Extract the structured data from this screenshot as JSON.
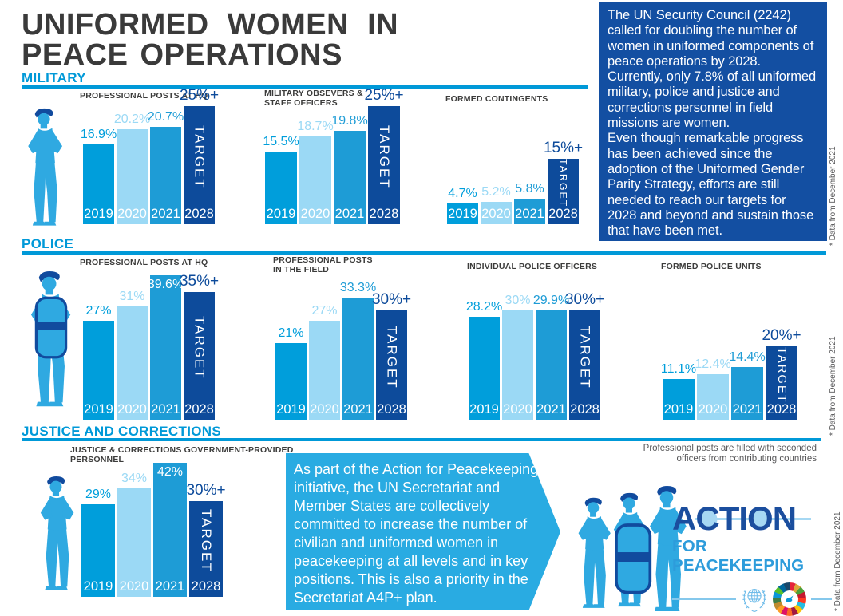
{
  "title": {
    "line1": "UNIFORMED WOMEN IN",
    "line2": "PEACE OPERATIONS"
  },
  "sections": [
    {
      "label": "MILITARY"
    },
    {
      "label": "POLICE"
    },
    {
      "label": "JUSTICE AND CORRECTIONS"
    }
  ],
  "info_box": {
    "text": "The UN Security Council (2242) called for doubling the number of women in uniformed components of peace operations by 2028. Currently, only 7.8% of all uniformed military, police and justice and corrections personnel in field missions are women.\nEven though remarkable progress has been achieved since the adoption of the Uniformed Gender Parity Strategy, efforts are still needed to reach our targets for 2028 and beyond and sustain those that have been met."
  },
  "arrow_box": {
    "text": "As part of the Action for Peacekeeping initiative, the UN Secretariat and Member States are collectively committed to increase the number of civilian and uniformed women in peacekeeping at all levels and in key positions. This is also a priority in the Secretariat A4P+ plan."
  },
  "footnote": {
    "text": "Professional posts are filled with seconded\nofficers from contributing countries"
  },
  "side_note": "* Data from December 2021",
  "logo": {
    "part_a": "A",
    "part_c": "C",
    "part_ti": "TI",
    "part_o": "O",
    "part_n": "N",
    "word": "ACTION",
    "subtitle": "FOR PEACEKEEPING"
  },
  "colors": {
    "bar_2019": "#009edb",
    "bar_2020": "#9bd9f5",
    "bar_2021": "#1e9cd6",
    "bar_target": "#0d4b9b",
    "section_blue": "#0099d8",
    "info_box_blue": "#134fa2",
    "arrow_box_blue": "#29abe2",
    "figure_blue": "#2fa9e1",
    "beret_navy": "#114b9e"
  },
  "chart_data": [
    {
      "type": "bar",
      "section": "MILITARY",
      "title": "PROFESSIONAL POSTS AT HQ",
      "categories": [
        "2019",
        "2020",
        "2021",
        "2028"
      ],
      "values": [
        16.9,
        20.2,
        20.7,
        25
      ],
      "labels": [
        "16.9%",
        "20.2%",
        "20.7%",
        "25%+"
      ],
      "target_bar": "2028",
      "target_text": "TARGET",
      "unit": "%"
    },
    {
      "type": "bar",
      "section": "MILITARY",
      "title": "MILITARY OBSEVERS &\nSTAFF OFFICERS",
      "categories": [
        "2019",
        "2020",
        "2021",
        "2028"
      ],
      "values": [
        15.5,
        18.7,
        19.8,
        25
      ],
      "labels": [
        "15.5%",
        "18.7%",
        "19.8%",
        "25%+"
      ],
      "target_bar": "2028",
      "target_text": "TARGET",
      "unit": "%"
    },
    {
      "type": "bar",
      "section": "MILITARY",
      "title": "FORMED CONTINGENTS",
      "categories": [
        "2019",
        "2020",
        "2021",
        "2028"
      ],
      "values": [
        4.7,
        5.2,
        5.8,
        15
      ],
      "labels": [
        "4.7%",
        "5.2%",
        "5.8%",
        "15%+"
      ],
      "target_bar": "2028",
      "target_text": "TARGET",
      "unit": "%"
    },
    {
      "type": "bar",
      "section": "POLICE",
      "title": "PROFESSIONAL POSTS AT HQ",
      "categories": [
        "2019",
        "2020",
        "2021",
        "2028"
      ],
      "values": [
        27,
        31,
        39.6,
        35
      ],
      "labels": [
        "27%",
        "31%",
        "39.6%",
        "35%+"
      ],
      "target_bar": "2028",
      "target_text": "TARGET",
      "unit": "%"
    },
    {
      "type": "bar",
      "section": "POLICE",
      "title": "PROFESSIONAL POSTS\nIN THE FIELD",
      "categories": [
        "2019",
        "2020",
        "2021",
        "2028"
      ],
      "values": [
        21,
        27,
        33.3,
        30
      ],
      "labels": [
        "21%",
        "27%",
        "33.3%",
        "30%+"
      ],
      "target_bar": "2028",
      "target_text": "TARGET",
      "unit": "%"
    },
    {
      "type": "bar",
      "section": "POLICE",
      "title": "INDIVIDUAL POLICE OFFICERS",
      "categories": [
        "2019",
        "2020",
        "2021",
        "2028"
      ],
      "values": [
        28.2,
        30,
        29.9,
        30
      ],
      "labels": [
        "28.2%",
        "30%",
        "29.9%",
        "30%+"
      ],
      "target_bar": "2028",
      "target_text": "TARGET",
      "unit": "%"
    },
    {
      "type": "bar",
      "section": "POLICE",
      "title": "FORMED POLICE UNITS",
      "categories": [
        "2019",
        "2020",
        "2021",
        "2028"
      ],
      "values": [
        11.1,
        12.4,
        14.4,
        20
      ],
      "labels": [
        "11.1%",
        "12.4%",
        "14.4%",
        "20%+"
      ],
      "target_bar": "2028",
      "target_text": "TARGET",
      "unit": "%"
    },
    {
      "type": "bar",
      "section": "JUSTICE AND CORRECTIONS",
      "title": "JUSTICE & CORRECTIONS GOVERNMENT-PROVIDED\nPERSONNEL",
      "categories": [
        "2019",
        "2020",
        "2021",
        "2028"
      ],
      "values": [
        29,
        34,
        42,
        30
      ],
      "labels": [
        "29%",
        "34%",
        "42%",
        "30%+"
      ],
      "target_bar": "2028",
      "target_text": "TARGET",
      "unit": "%"
    }
  ]
}
